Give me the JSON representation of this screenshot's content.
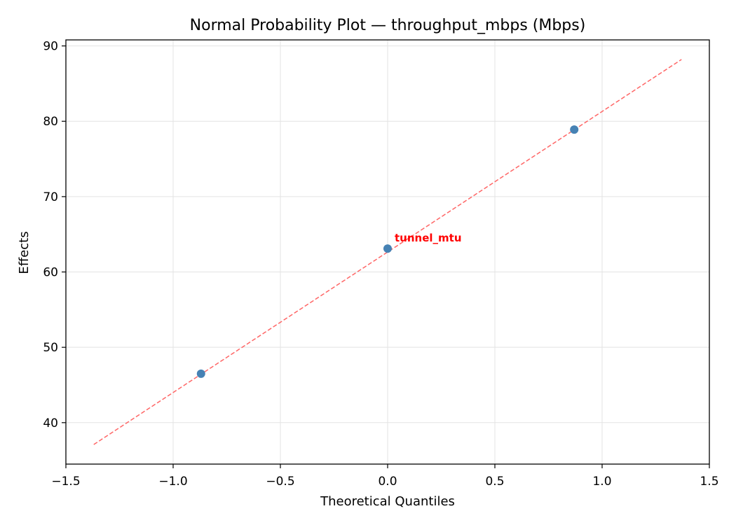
{
  "chart_data": {
    "type": "scatter",
    "title": "Normal Probability Plot — throughput_mbps (Mbps)",
    "xlabel": "Theoretical Quantiles",
    "ylabel": "Effects",
    "xlim": [
      -1.5,
      1.5
    ],
    "ylim": [
      34.5,
      90.8
    ],
    "xticks": [
      -1.5,
      -1.0,
      -0.5,
      0.0,
      0.5,
      1.0,
      1.5
    ],
    "xtick_labels": [
      "−1.5",
      "−1.0",
      "−0.5",
      "0.0",
      "0.5",
      "1.0",
      "1.5"
    ],
    "yticks": [
      40,
      50,
      60,
      70,
      80,
      90
    ],
    "ytick_labels": [
      "40",
      "50",
      "60",
      "70",
      "80",
      "90"
    ],
    "grid": true,
    "series": [
      {
        "type": "scatter",
        "color": "#4682b4",
        "x": [
          -0.87,
          0.0,
          0.87
        ],
        "y": [
          46.5,
          63.1,
          78.9
        ]
      },
      {
        "type": "line",
        "style": "dashed",
        "color": "#ff6666",
        "x": [
          -1.37,
          1.37
        ],
        "y": [
          37.1,
          88.2
        ]
      }
    ],
    "annotations": [
      {
        "text": "tunnel_mtu",
        "x": 0.0,
        "y": 63.1,
        "color": "#ff0000"
      }
    ]
  }
}
